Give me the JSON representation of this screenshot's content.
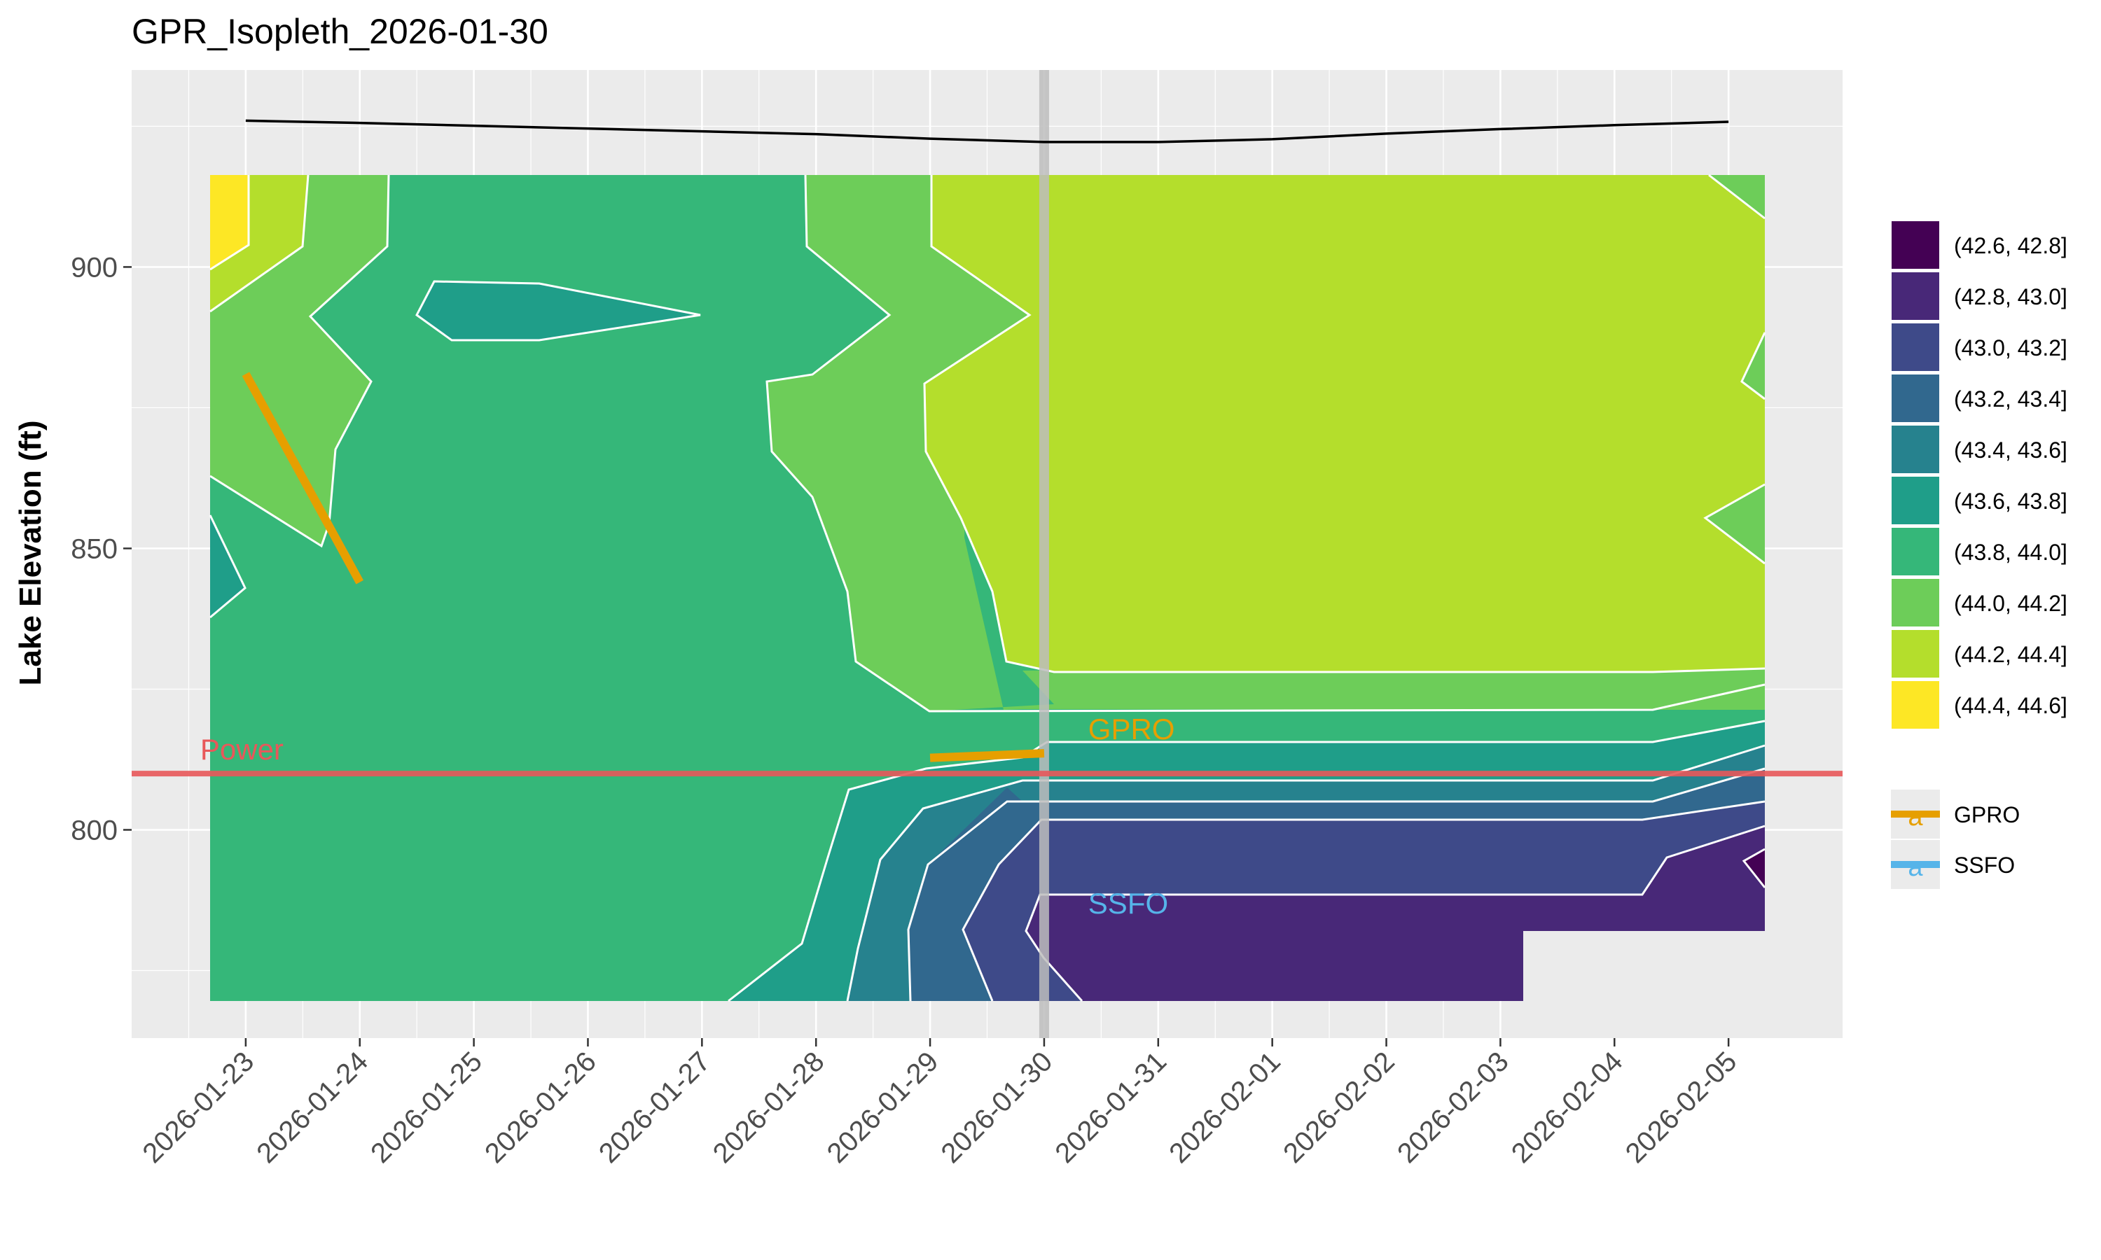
{
  "chart_data": {
    "type": "heatmap",
    "title": "GPR_Isopleth_2026-01-30",
    "xlabel": "",
    "ylabel": "Lake Elevation (ft)",
    "x_ticks": [
      "2026-01-23",
      "2026-01-24",
      "2026-01-25",
      "2026-01-26",
      "2026-01-27",
      "2026-01-28",
      "2026-01-29",
      "2026-01-30",
      "2026-01-31",
      "2026-02-01",
      "2026-02-02",
      "2026-02-03",
      "2026-02-04",
      "2026-02-05"
    ],
    "y_ticks": [
      800,
      850,
      900
    ],
    "xlim": [
      "2026-01-22",
      "2026-02-06"
    ],
    "ylim": [
      763,
      935
    ],
    "grid": true,
    "legend_position": "right",
    "current_date": "2026-01-30",
    "contour_bins": [
      {
        "label": "(42.6, 42.8]",
        "color": "#440154"
      },
      {
        "label": "(42.8, 43.0]",
        "color": "#482878"
      },
      {
        "label": "(43.0, 43.2]",
        "color": "#3E4A89"
      },
      {
        "label": "(43.2, 43.4]",
        "color": "#31688E"
      },
      {
        "label": "(43.4, 43.6]",
        "color": "#26828E"
      },
      {
        "label": "(43.6, 43.8]",
        "color": "#1F9E89"
      },
      {
        "label": "(43.8, 44.0]",
        "color": "#35B779"
      },
      {
        "label": "(44.0, 44.2]",
        "color": "#6DCD59"
      },
      {
        "label": "(44.2, 44.4]",
        "color": "#B4DE2C"
      },
      {
        "label": "(44.4, 44.6]",
        "color": "#FDE725"
      }
    ],
    "lake_surface": {
      "x": [
        "2026-01-23",
        "2026-01-24",
        "2026-01-25",
        "2026-01-26",
        "2026-01-27",
        "2026-01-28",
        "2026-01-29",
        "2026-01-30",
        "2026-01-31",
        "2026-02-01",
        "2026-02-02",
        "2026-02-03",
        "2026-02-04",
        "2026-02-05"
      ],
      "y": [
        926,
        925.6,
        925.1,
        924.6,
        924.1,
        923.6,
        922.8,
        922.2,
        922.2,
        922.7,
        923.7,
        924.5,
        925.2,
        925.8
      ]
    },
    "power_line": {
      "label": "Power",
      "y": 810,
      "color": "#E8585A"
    },
    "series": [
      {
        "name": "GPRO",
        "color": "#E69F00",
        "x": [
          "2026-01-23",
          "2026-01-24"
        ],
        "y": [
          881,
          844
        ]
      },
      {
        "name": "GPRO",
        "color": "#E69F00",
        "x": [
          "2026-01-29",
          "2026-01-30"
        ],
        "y": [
          812.8,
          813.6
        ]
      },
      {
        "name": "SSFO",
        "color": "#56B4E9",
        "x": [],
        "y": []
      }
    ],
    "annotations": [
      {
        "text": "GPRO",
        "x": "2026-01-31",
        "y": 818,
        "color": "#E69F00"
      },
      {
        "text": "SSFO",
        "x": "2026-01-31",
        "y": 787,
        "color": "#56B4E9"
      }
    ],
    "legend_lines": [
      {
        "label": "GPRO",
        "color": "#E69F00",
        "key_glyph": "a"
      },
      {
        "label": "SSFO",
        "color": "#56B4E9",
        "key_glyph": "a"
      }
    ]
  }
}
